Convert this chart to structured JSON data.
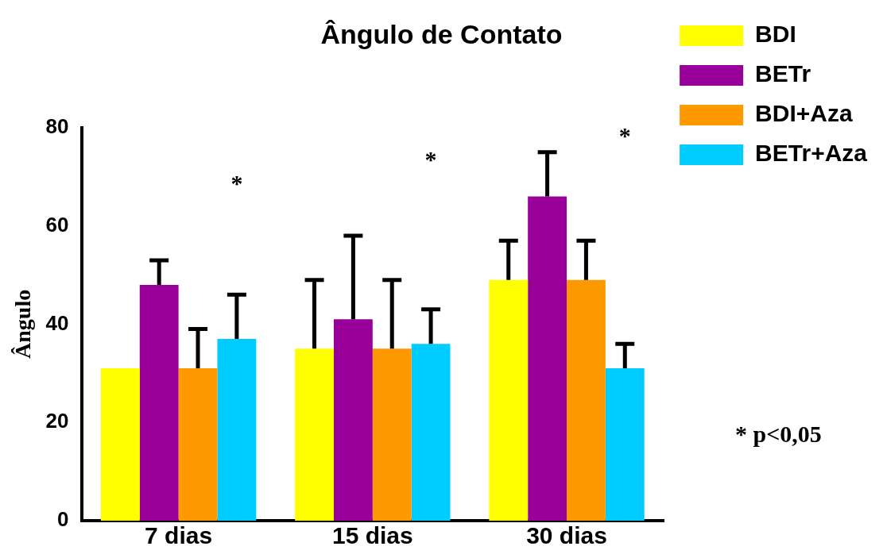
{
  "chart_data": {
    "type": "bar",
    "title": "Ângulo de Contato",
    "ylabel": "Ângulo",
    "categories": [
      "7 dias",
      "15 dias",
      "30 dias"
    ],
    "series": [
      {
        "name": "BDI",
        "color": "#ffff00",
        "values": [
          31,
          35,
          49
        ],
        "errors": [
          null,
          [
            35,
            49
          ],
          [
            49,
            57
          ]
        ]
      },
      {
        "name": "BETr",
        "color": "#990099",
        "values": [
          48,
          41,
          66
        ],
        "errors": [
          [
            48,
            53
          ],
          [
            41,
            58
          ],
          [
            66,
            75
          ]
        ]
      },
      {
        "name": "BDI+Aza",
        "color": "#ff9900",
        "values": [
          31,
          35,
          49
        ],
        "errors": [
          [
            31,
            39
          ],
          [
            35,
            49
          ],
          [
            49,
            57
          ]
        ]
      },
      {
        "name": "BETr+Aza",
        "color": "#00ccff",
        "values": [
          37,
          36,
          31
        ],
        "errors": [
          [
            37,
            46
          ],
          [
            36,
            43
          ],
          [
            31,
            36
          ]
        ]
      }
    ],
    "ylim": [
      0,
      80
    ],
    "yticks": [
      0,
      20,
      40,
      60,
      80
    ],
    "grid": false,
    "legend": "right",
    "annotations": [
      "*",
      "*",
      "*",
      "* p<0,05"
    ]
  }
}
